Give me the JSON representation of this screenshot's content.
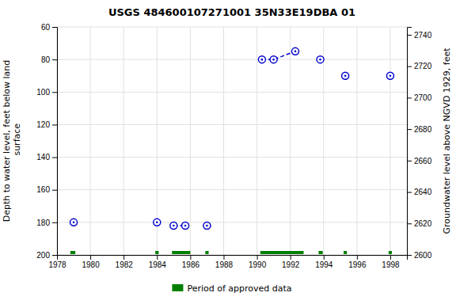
{
  "chart_data": {
    "type": "scatter",
    "title": "USGS 484600107271001 35N33E19DBA 01",
    "ylabel": "Depth to water level, feet below land\n surface",
    "y2label": "Groundwater level above NGVD 1929, feet",
    "xlim": [
      1978,
      1999
    ],
    "ylim": [
      200,
      60
    ],
    "y2lim": [
      2600,
      2745
    ],
    "xticks": [
      1978,
      1980,
      1982,
      1984,
      1986,
      1988,
      1990,
      1992,
      1994,
      1996,
      1998
    ],
    "yticks": [
      60,
      80,
      100,
      120,
      140,
      160,
      180,
      200
    ],
    "y2ticks": [
      2600,
      2620,
      2640,
      2660,
      2680,
      2700,
      2720,
      2740
    ],
    "grid": true,
    "legend": "bottom",
    "series": [
      {
        "type": "scatter",
        "marker": "circle",
        "color": "#0000cc",
        "x": [
          1979.0,
          1984.0,
          1985.0,
          1985.7,
          1987.0,
          1990.3,
          1991.0,
          1992.3,
          1993.8,
          1995.3,
          1998.0
        ],
        "values": [
          180,
          180,
          182,
          182,
          182,
          80,
          80,
          75,
          80,
          90,
          90
        ]
      },
      {
        "type": "line",
        "line_style": "dashed",
        "color": "#0000cc",
        "x": [
          1985.0,
          1985.7
        ],
        "values": [
          182,
          182
        ]
      },
      {
        "type": "line",
        "line_style": "dashed",
        "color": "#0000cc",
        "x": [
          1990.3,
          1991.0,
          1992.3
        ],
        "values": [
          80,
          80,
          75
        ]
      },
      {
        "type": "period",
        "name": "Period of approved data",
        "color": "#008000",
        "x_start": [
          1978.8,
          1983.9,
          1984.9,
          1986.9,
          1990.2,
          1993.7,
          1995.2,
          1997.9
        ],
        "x_end": [
          1979.1,
          1984.1,
          1986.0,
          1987.1,
          1992.8,
          1993.95,
          1995.4,
          1998.1
        ]
      }
    ]
  }
}
